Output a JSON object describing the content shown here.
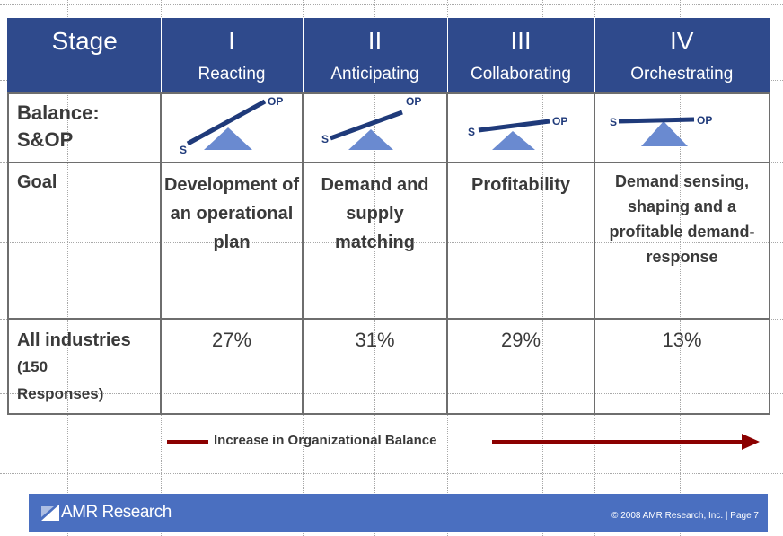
{
  "header": {
    "stage_label": "Stage",
    "stages": [
      {
        "numeral": "I",
        "name": "Reacting"
      },
      {
        "numeral": "II",
        "name": "Anticipating"
      },
      {
        "numeral": "III",
        "name": "Collaborating"
      },
      {
        "numeral": "IV",
        "name": "Orchestrating"
      }
    ]
  },
  "balance_row": {
    "label_line1": "Balance:",
    "label_line2": "S&OP",
    "s_label": "S",
    "op_label": "OP"
  },
  "goal_row": {
    "label": "Goal",
    "goals": [
      "Development of an operational plan",
      "Demand and supply matching",
      "Profitability",
      "Demand sensing, shaping and a profitable demand-response"
    ]
  },
  "industries_row": {
    "label_line1": "All industries",
    "label_line2": "(150",
    "label_line3": "Responses)",
    "values": [
      "27%",
      "31%",
      "29%",
      "13%"
    ]
  },
  "arrow": {
    "text": "Increase in Organizational Balance",
    "color": "#8b0000"
  },
  "footer": {
    "logo_text": "AMR Research",
    "copyright": "© 2008 AMR Research, Inc. | Page 7"
  },
  "colors": {
    "header_bg": "#2f4a8c",
    "footer_bg": "#4a6fc0",
    "scale_fulcrum": "#6a8ad0",
    "scale_beam": "#1f3a7a"
  }
}
